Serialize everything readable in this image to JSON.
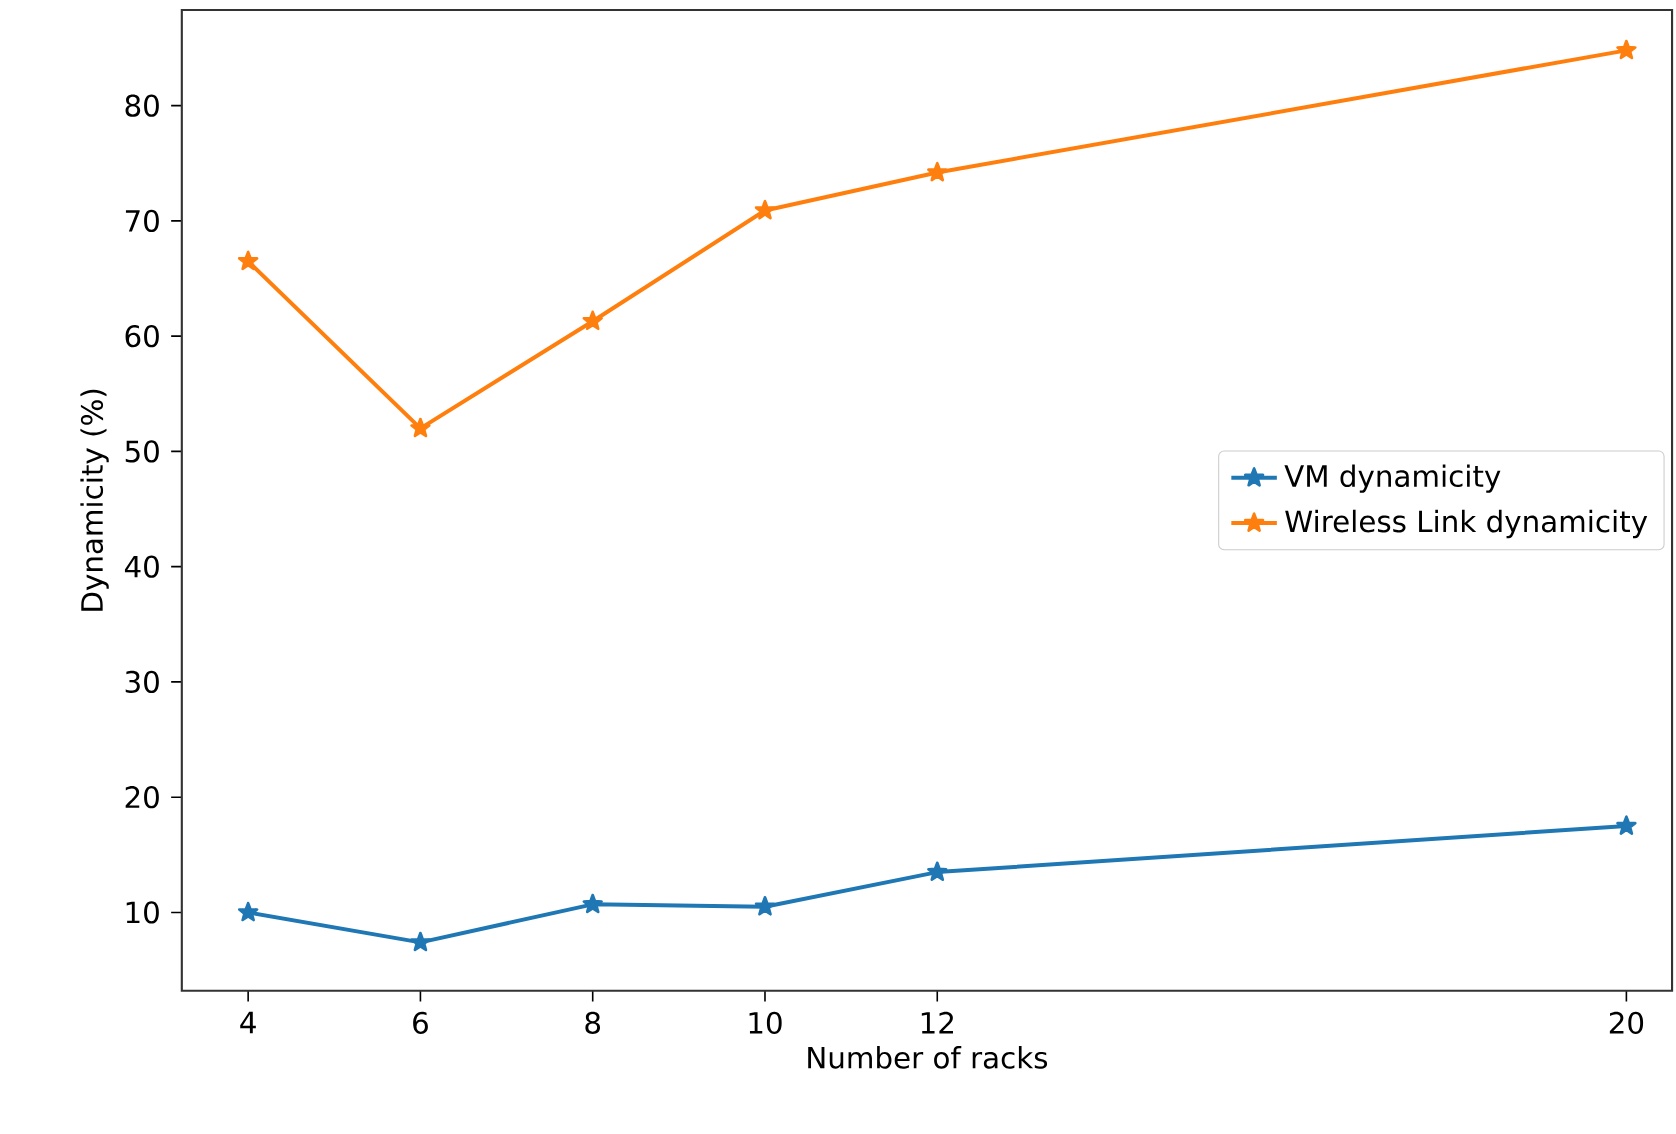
{
  "chart_data": {
    "type": "line",
    "xlabel": "Number of racks",
    "ylabel": "Dynamicity (%)",
    "x": [
      4,
      6,
      8,
      10,
      12,
      20
    ],
    "series": [
      {
        "name": "VM dynamicity",
        "color": "#1f77b4",
        "values": [
          10.0,
          7.4,
          10.7,
          10.5,
          13.5,
          17.5
        ]
      },
      {
        "name": "Wireless Link dynamicity",
        "color": "#ff7f0e",
        "values": [
          66.5,
          52.0,
          61.3,
          70.9,
          74.2,
          84.8
        ]
      }
    ],
    "xlim": [
      3.23,
      20.53
    ],
    "ylim": [
      3.2,
      88.3
    ],
    "xticks": [
      4,
      6,
      8,
      10,
      12,
      20
    ],
    "yticks": [
      10,
      20,
      30,
      40,
      50,
      60,
      70,
      80
    ],
    "marker": "star",
    "line_style": "solid",
    "legend": "right",
    "grid": false
  }
}
